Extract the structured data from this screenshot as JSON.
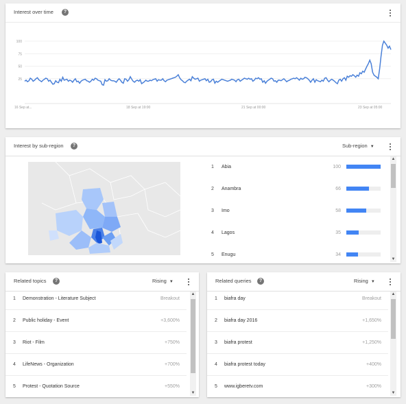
{
  "interest_over_time": {
    "title": "Interest over time",
    "help": "?",
    "y_ticks": [
      "100",
      "75",
      "50",
      "25"
    ],
    "x_ticks": [
      "16 Sep at...",
      "18 Sep at 19:00",
      "21 Sep at 00:00",
      "23 Sep at 05:00"
    ],
    "line_color": "#4a80d8"
  },
  "chart_data": {
    "type": "line",
    "title": "",
    "xlabel": "",
    "ylabel": "",
    "ylim": [
      0,
      100
    ],
    "grid": true,
    "x_ticks": [
      "16 Sep at...",
      "18 Sep at 19:00",
      "21 Sep at 00:00",
      "23 Sep at 05:00"
    ],
    "series": [
      {
        "values": [
          20,
          22,
          19,
          21,
          26,
          24,
          20,
          22,
          25,
          27,
          23,
          21,
          19,
          22,
          24,
          26,
          25,
          20,
          22,
          18,
          14,
          15,
          21,
          18,
          17,
          24,
          20,
          28,
          22,
          23,
          24,
          20,
          22,
          21,
          18,
          22,
          25,
          19,
          20,
          16,
          20,
          22,
          23,
          24,
          21,
          20,
          18,
          20,
          24,
          22,
          26,
          25,
          22,
          21,
          20,
          13,
          12,
          23,
          20,
          21,
          25,
          22,
          21,
          21,
          20,
          18,
          22,
          25,
          22,
          18,
          16,
          25,
          24,
          20,
          23,
          29,
          24,
          20,
          18,
          21,
          22,
          20,
          23,
          15,
          17,
          19,
          22,
          20,
          20,
          22,
          21,
          23,
          24,
          25,
          20,
          23,
          22,
          22,
          25,
          21,
          19,
          22,
          23,
          24,
          25,
          26,
          27,
          28,
          30,
          33,
          27,
          23,
          21,
          18,
          17,
          20,
          22,
          24,
          21,
          29,
          26,
          24,
          25,
          26,
          20,
          22,
          23,
          24,
          25,
          21,
          24,
          18,
          19,
          23,
          24,
          16,
          20,
          18,
          20,
          22,
          24,
          23,
          22,
          21,
          20,
          21,
          22,
          24,
          23,
          22,
          19,
          23,
          24,
          20,
          22,
          24,
          26,
          25,
          24,
          26,
          24,
          25,
          20,
          22,
          26,
          25,
          27,
          24,
          25,
          18,
          21,
          16,
          20,
          22,
          24,
          26,
          25,
          20,
          21,
          18,
          22,
          22,
          21,
          23,
          25,
          22,
          19,
          21,
          22,
          24,
          25,
          26,
          25,
          27,
          25,
          22,
          26,
          24,
          25,
          28,
          27,
          25,
          22,
          18,
          22,
          25,
          18,
          23,
          21,
          20,
          19,
          22,
          20,
          26,
          27,
          22,
          19,
          22,
          24,
          22,
          20,
          17,
          15,
          22,
          24,
          20,
          25,
          27,
          22,
          30,
          28,
          31,
          30,
          33,
          31,
          28,
          32,
          30,
          37,
          35,
          40,
          38,
          44,
          50,
          55,
          62,
          55,
          38,
          32,
          30,
          28,
          25,
          45,
          70,
          92,
          100,
          96,
          92,
          86,
          90,
          83
        ]
      }
    ]
  },
  "interest_by_subregion": {
    "title": "Interest by sub-region",
    "help": "?",
    "dropdown_label": "Sub-region",
    "items": [
      {
        "rank": "1",
        "name": "Abia",
        "value": "100",
        "level": 100
      },
      {
        "rank": "2",
        "name": "Anambra",
        "value": "66",
        "level": 66
      },
      {
        "rank": "3",
        "name": "Imo",
        "value": "58",
        "level": 58
      },
      {
        "rank": "4",
        "name": "Lagos",
        "value": "35",
        "level": 35
      },
      {
        "rank": "5",
        "name": "Enugu",
        "value": "34",
        "level": 34
      }
    ],
    "bar_color": "#4285f4"
  },
  "related_topics": {
    "title": "Related topics",
    "help": "?",
    "dropdown_label": "Rising",
    "items": [
      {
        "rank": "1",
        "label": "Demonstration - Literature Subject",
        "value": "Breakout"
      },
      {
        "rank": "2",
        "label": "Public holiday - Event",
        "value": "+3,600%"
      },
      {
        "rank": "3",
        "label": "Riot - Film",
        "value": "+750%"
      },
      {
        "rank": "4",
        "label": "LifeNews - Organization",
        "value": "+700%"
      },
      {
        "rank": "5",
        "label": "Protest - Quotation Source",
        "value": "+550%"
      }
    ]
  },
  "related_queries": {
    "title": "Related queries",
    "help": "?",
    "dropdown_label": "Rising",
    "items": [
      {
        "rank": "1",
        "label": "biafra day",
        "value": "Breakout"
      },
      {
        "rank": "2",
        "label": "biafra day 2016",
        "value": "+1,650%"
      },
      {
        "rank": "3",
        "label": "biafra protest",
        "value": "+1,250%"
      },
      {
        "rank": "4",
        "label": "biafra protest today",
        "value": "+400%"
      },
      {
        "rank": "5",
        "label": "www.igberetv.com",
        "value": "+300%"
      }
    ]
  },
  "icons": {
    "help": "help-icon",
    "menu": "more-vert-icon",
    "caret": "caret-down-icon",
    "scroll_up": "scroll-up-icon",
    "scroll_down": "scroll-down-icon"
  }
}
